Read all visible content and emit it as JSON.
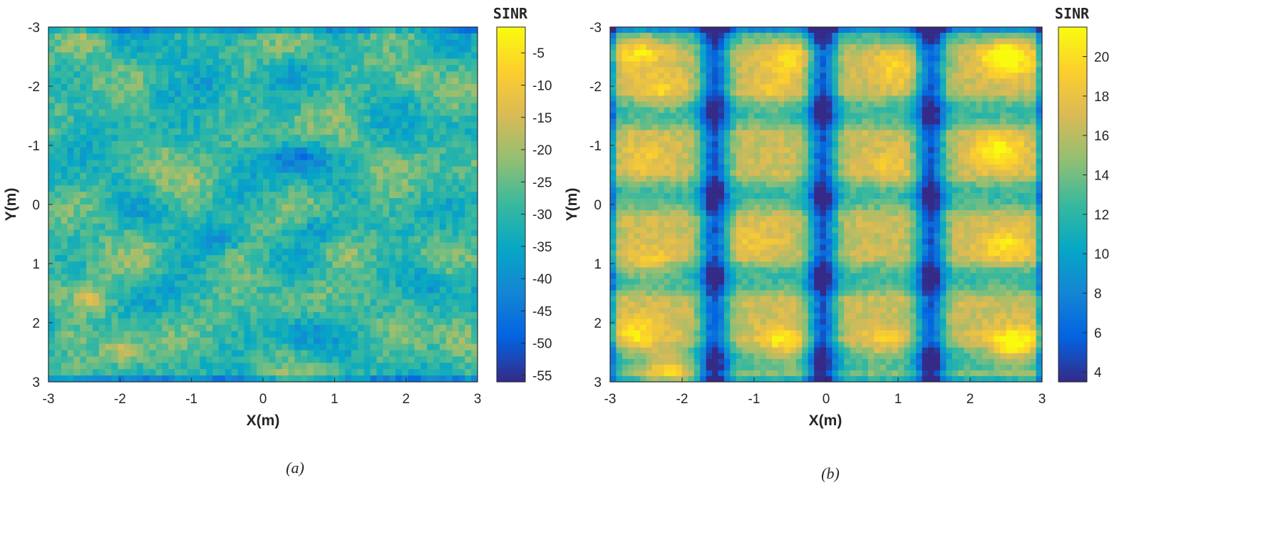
{
  "chart_data": [
    {
      "type": "heatmap",
      "xlabel": "X(m)",
      "ylabel": "Y(m)",
      "colorbar_title": "SINR",
      "caption": "(a)",
      "xlim": [
        -3,
        3
      ],
      "ylim": [
        -3,
        3
      ],
      "y_direction": "reversed (-3 at top, 3 at bottom)",
      "x_ticks": [
        "-3",
        "-2",
        "-1",
        "0",
        "1",
        "2",
        "3"
      ],
      "y_ticks": [
        "-3",
        "-2",
        "-1",
        "0",
        "1",
        "2",
        "3"
      ],
      "colorbar_range": [
        -56,
        -1
      ],
      "colorbar_ticks": [
        "-5",
        "-10",
        "-15",
        "-20",
        "-25",
        "-30",
        "-35",
        "-40",
        "-45",
        "-50",
        "-55"
      ],
      "colormap": "parula",
      "grid": "off",
      "pattern": "noisy field, mostly -35 to -20; low pockets near (0.5,-0.8), (-0.6,0.6), (0.7,0.4), (2.3,1.3); high patches near (-2.4,1.6), (-2,2.5), (1.1,0.8)"
    },
    {
      "type": "heatmap",
      "xlabel": "X(m)",
      "ylabel": "Y(m)",
      "colorbar_title": "SINR",
      "caption": "(b)",
      "xlim": [
        -3,
        3
      ],
      "ylim": [
        -3,
        3
      ],
      "y_direction": "reversed (-3 at top, 3 at bottom)",
      "x_ticks": [
        "-3",
        "-2",
        "-1",
        "0",
        "1",
        "2",
        "3"
      ],
      "y_ticks": [
        "-3",
        "-2",
        "-1",
        "0",
        "1",
        "2",
        "3"
      ],
      "colorbar_range": [
        3.5,
        21.5
      ],
      "colorbar_ticks": [
        "20",
        "18",
        "16",
        "14",
        "12",
        "10",
        "8",
        "6",
        "4"
      ],
      "colormap": "parula",
      "grid": "off",
      "pattern": "dark vertical bands (~5) at x=-1.55, 0, 1.45; light rows (~12) at y=-1.55, -0.15, 1.25; yellow corners up to ~21 near (2.5,-2.5), (2.5,2.5), (-2.2,2.8)"
    }
  ],
  "colors": {
    "parula": [
      "#352a87",
      "#0363e1",
      "#1485d4",
      "#06a7c6",
      "#38b99e",
      "#92bf73",
      "#d9ba56",
      "#fcce2e",
      "#f9fb0e"
    ]
  }
}
